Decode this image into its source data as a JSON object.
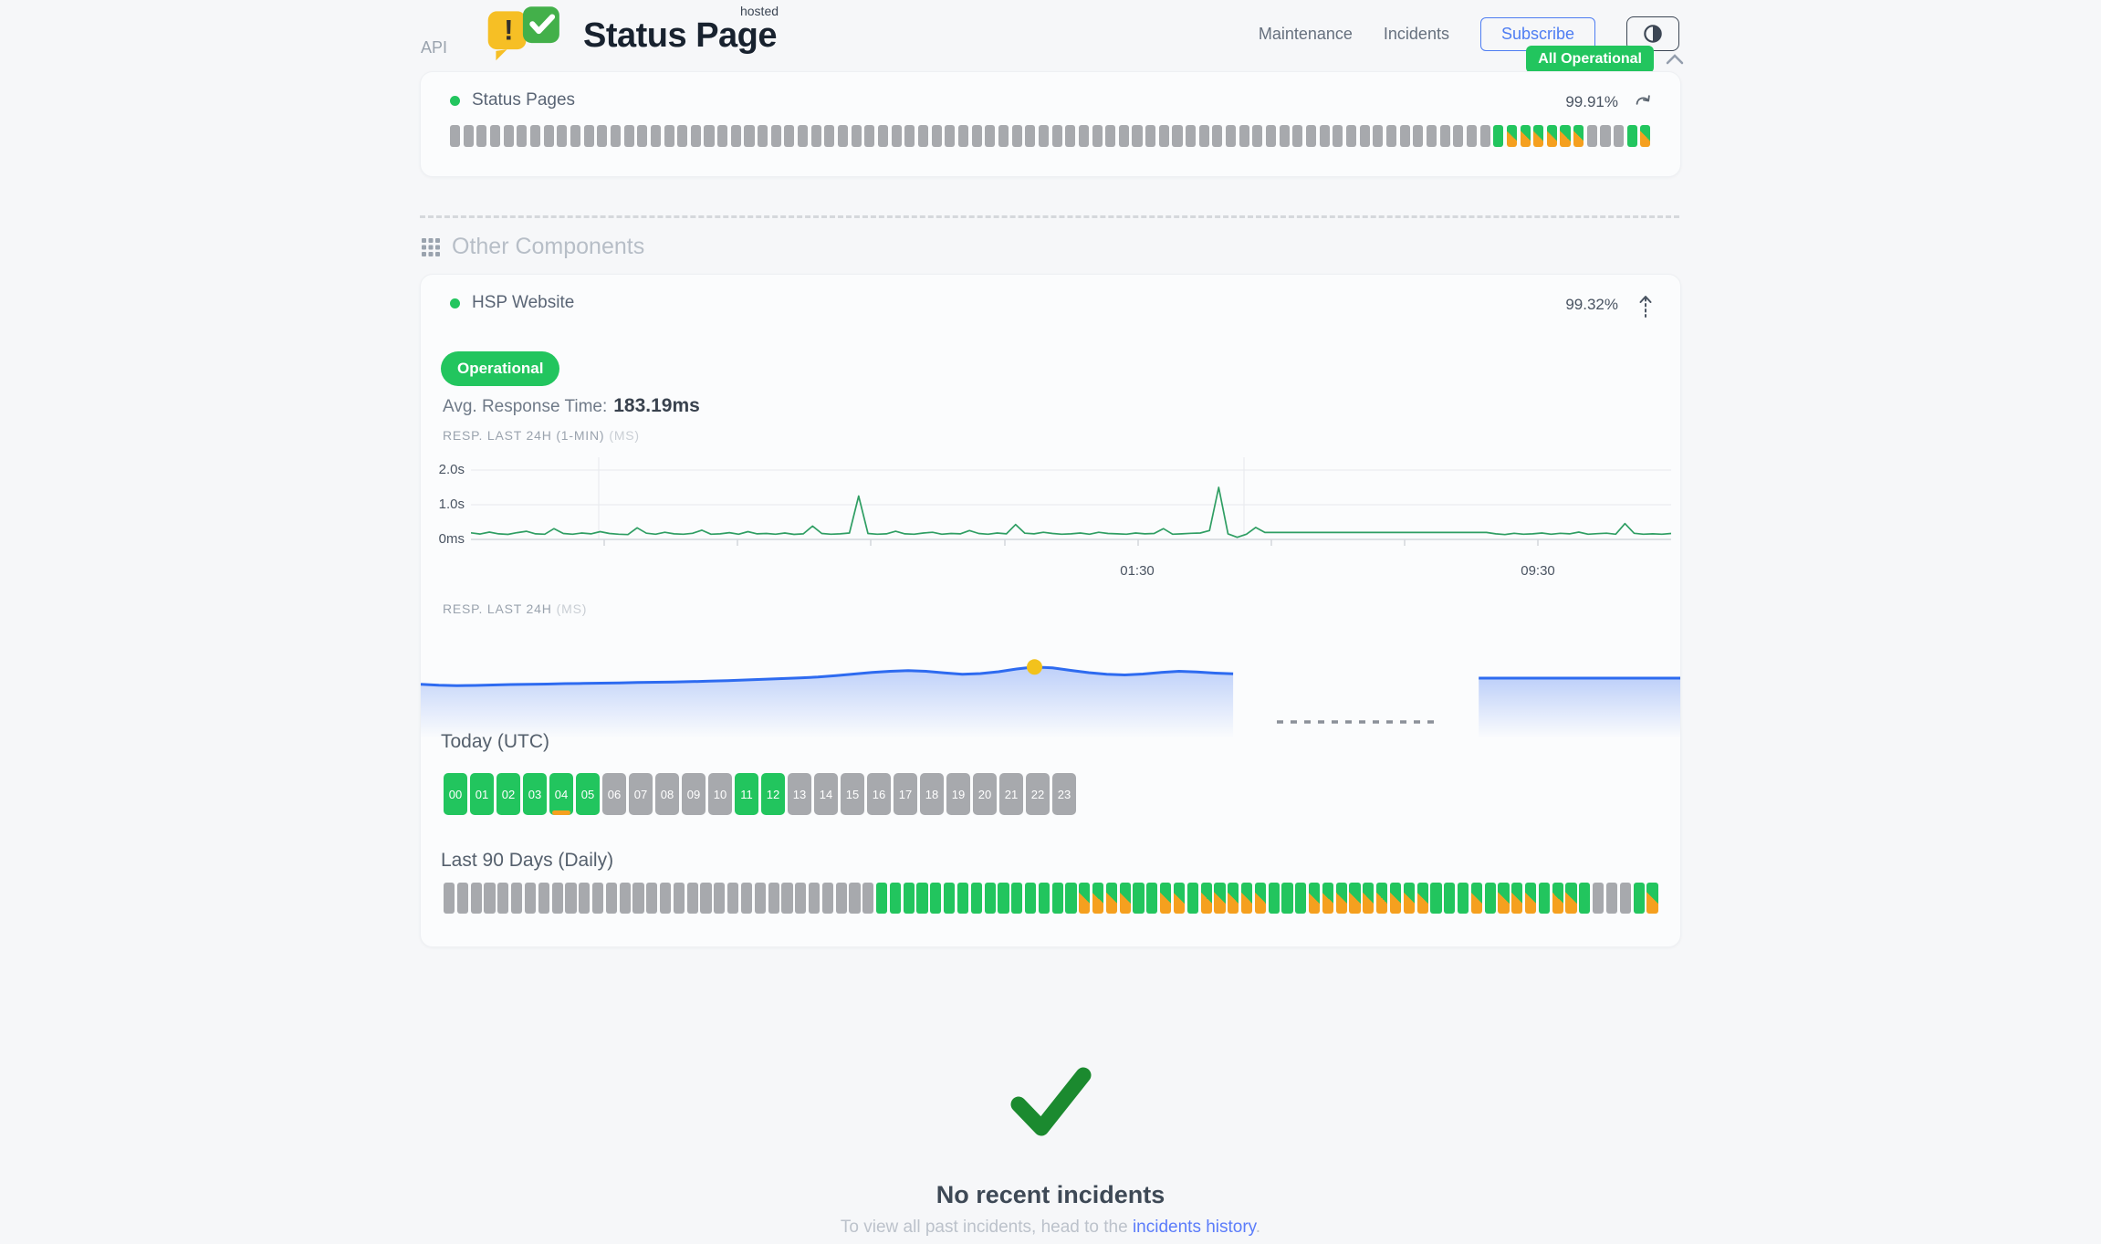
{
  "colors": {
    "green": "#22c55e",
    "orange": "#f5a01f",
    "gray": "#a7a9ad",
    "marker": "#f2c21c",
    "check": "#1b8a2f",
    "blue": "#2e6bf0"
  },
  "header": {
    "brand": {
      "title": "Status Page",
      "superscript": "hosted",
      "exclamation": "!"
    },
    "nav": [
      {
        "label": "Maintenance"
      },
      {
        "label": "Incidents"
      }
    ],
    "subscribe_label": "Subscribe",
    "status_badge": "All Operational"
  },
  "api_section": {
    "title": "API",
    "component": {
      "name": "Status Pages",
      "uptime": "99.91%",
      "bars": [
        "na",
        "na",
        "na",
        "na",
        "na",
        "na",
        "na",
        "na",
        "na",
        "na",
        "na",
        "na",
        "na",
        "na",
        "na",
        "na",
        "na",
        "na",
        "na",
        "na",
        "na",
        "na",
        "na",
        "na",
        "na",
        "na",
        "na",
        "na",
        "na",
        "na",
        "na",
        "na",
        "na",
        "na",
        "na",
        "na",
        "na",
        "na",
        "na",
        "na",
        "na",
        "na",
        "na",
        "na",
        "na",
        "na",
        "na",
        "na",
        "na",
        "na",
        "na",
        "na",
        "na",
        "na",
        "na",
        "na",
        "na",
        "na",
        "na",
        "na",
        "na",
        "na",
        "na",
        "na",
        "na",
        "na",
        "na",
        "na",
        "na",
        "na",
        "na",
        "na",
        "na",
        "na",
        "na",
        "na",
        "na",
        "na",
        "ok",
        "deg",
        "deg",
        "deg",
        "deg",
        "deg",
        "deg",
        "na",
        "na",
        "na",
        "ok",
        "deg"
      ]
    }
  },
  "other_components": {
    "title": "Other Components",
    "component": {
      "name": "HSP Website",
      "uptime": "99.32%",
      "status": "Operational",
      "avg_label": "Avg. Response Time:",
      "avg_value": "183.19ms",
      "today": {
        "title": "Today (UTC)",
        "hours": [
          {
            "label": "00",
            "state": "up"
          },
          {
            "label": "01",
            "state": "up"
          },
          {
            "label": "02",
            "state": "up"
          },
          {
            "label": "03",
            "state": "up"
          },
          {
            "label": "04",
            "state": "up",
            "strip": true
          },
          {
            "label": "05",
            "state": "up"
          },
          {
            "label": "06",
            "state": "na"
          },
          {
            "label": "07",
            "state": "na"
          },
          {
            "label": "08",
            "state": "na"
          },
          {
            "label": "09",
            "state": "na"
          },
          {
            "label": "10",
            "state": "na"
          },
          {
            "label": "11",
            "state": "up"
          },
          {
            "label": "12",
            "state": "up"
          },
          {
            "label": "13",
            "state": "na"
          },
          {
            "label": "14",
            "state": "na"
          },
          {
            "label": "15",
            "state": "na"
          },
          {
            "label": "16",
            "state": "na"
          },
          {
            "label": "17",
            "state": "na"
          },
          {
            "label": "18",
            "state": "na"
          },
          {
            "label": "19",
            "state": "na"
          },
          {
            "label": "20",
            "state": "na"
          },
          {
            "label": "21",
            "state": "na"
          },
          {
            "label": "22",
            "state": "na"
          },
          {
            "label": "23",
            "state": "na"
          }
        ]
      },
      "last90": {
        "title": "Last 90 Days (Daily)",
        "days": [
          "na",
          "na",
          "na",
          "na",
          "na",
          "na",
          "na",
          "na",
          "na",
          "na",
          "na",
          "na",
          "na",
          "na",
          "na",
          "na",
          "na",
          "na",
          "na",
          "na",
          "na",
          "na",
          "na",
          "na",
          "na",
          "na",
          "na",
          "na",
          "na",
          "na",
          "na",
          "na",
          "ok",
          "ok",
          "ok",
          "ok",
          "ok",
          "ok",
          "ok",
          "ok",
          "ok",
          "ok",
          "ok",
          "ok",
          "ok",
          "ok",
          "ok",
          "deg",
          "deg",
          "deg",
          "deg",
          "ok",
          "ok",
          "deg",
          "deg",
          "ok",
          "deg",
          "deg",
          "deg",
          "deg",
          "deg",
          "ok",
          "ok",
          "ok",
          "deg",
          "deg",
          "deg",
          "deg",
          "deg",
          "deg",
          "deg",
          "deg",
          "deg",
          "ok",
          "ok",
          "ok",
          "deg",
          "ok",
          "deg",
          "deg",
          "deg",
          "ok",
          "deg",
          "deg",
          "ok",
          "na",
          "na",
          "na",
          "ok",
          "deg"
        ]
      }
    }
  },
  "incidents": {
    "title": "No recent incidents",
    "subtitle_prefix": "To view all past incidents, head to the ",
    "link_text": "incidents history",
    "subtitle_suffix": "."
  },
  "chart_data": [
    {
      "type": "line",
      "title": "RESP. LAST 24H (1-MIN)",
      "unit": "(MS)",
      "x_ticks": [
        "01:30",
        "09:30"
      ],
      "y_ticks": [
        "2.0s",
        "1.0s",
        "0ms"
      ],
      "ylim_ms": [
        0,
        2000
      ],
      "values_ms": [
        190,
        155,
        210,
        160,
        145,
        195,
        235,
        160,
        150,
        310,
        170,
        150,
        185,
        160,
        225,
        170,
        150,
        140,
        335,
        180,
        150,
        205,
        160,
        150,
        175,
        265,
        150,
        160,
        195,
        150,
        225,
        160,
        170,
        150,
        185,
        145,
        160,
        385,
        170,
        150,
        160,
        185,
        1250,
        170,
        150,
        160,
        235,
        160,
        150,
        185,
        205,
        150,
        170,
        160,
        255,
        170,
        150,
        185,
        160,
        430,
        180,
        160,
        205,
        170,
        150,
        160,
        185,
        150,
        205,
        170,
        160,
        150,
        185,
        160,
        170,
        310,
        150,
        160,
        175,
        185,
        255,
        1500,
        160,
        60,
        150,
        345,
        200,
        200,
        200,
        200,
        200,
        200,
        200,
        200,
        200,
        200,
        200,
        200,
        200,
        200,
        200,
        200,
        200,
        200,
        200,
        200,
        200,
        200,
        200,
        200,
        200,
        160,
        140,
        175,
        150,
        160,
        185,
        150,
        175,
        160,
        210,
        150,
        165,
        180,
        150,
        455,
        175,
        150,
        160,
        150,
        170
      ]
    },
    {
      "type": "area",
      "title": "RESP. LAST 24H",
      "unit": "(MS)",
      "values_ms": [
        205,
        201,
        199,
        200,
        202,
        204,
        205,
        206,
        208,
        209,
        210,
        211,
        213,
        214,
        215,
        217,
        219,
        221,
        224,
        227,
        230,
        233,
        237,
        243,
        250,
        257,
        262,
        265,
        262,
        255,
        249,
        252,
        260,
        272,
        281,
        277,
        266,
        256,
        249,
        246,
        250,
        257,
        262,
        259,
        254,
        251
      ],
      "main_end_frac": 0.645,
      "marker": {
        "index": 34,
        "ms": 281
      },
      "gap": {
        "from_frac": 0.68,
        "to_frac": 0.805
      },
      "resumed": {
        "from_frac": 0.84,
        "ms": 232
      }
    }
  ]
}
